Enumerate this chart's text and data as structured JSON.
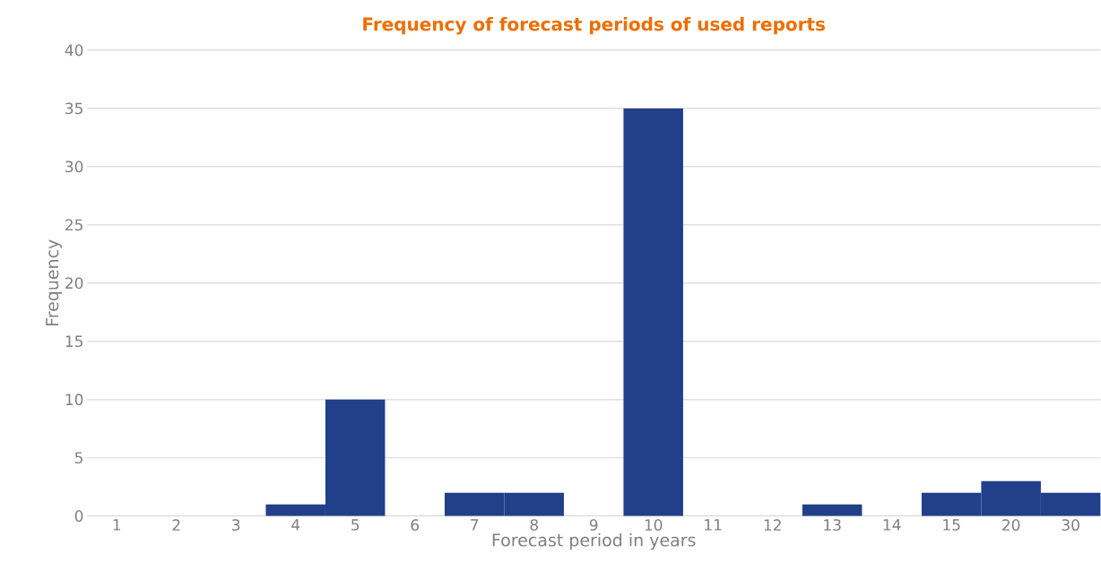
{
  "chart_data": {
    "type": "bar",
    "title": "Frequency of forecast periods of used reports",
    "xlabel": "Forecast period in years",
    "ylabel": "Frequency",
    "categories": [
      "1",
      "2",
      "3",
      "4",
      "5",
      "6",
      "7",
      "8",
      "9",
      "10",
      "11",
      "12",
      "13",
      "14",
      "15",
      "20",
      "30"
    ],
    "values": [
      0,
      0,
      0,
      1,
      10,
      0,
      2,
      2,
      0,
      35,
      0,
      0,
      1,
      0,
      2,
      3,
      2
    ],
    "color": "#22408a",
    "ylim": [
      0,
      40
    ],
    "yticks": [
      0,
      5,
      10,
      15,
      20,
      25,
      30,
      35,
      40
    ],
    "grid": "y"
  }
}
